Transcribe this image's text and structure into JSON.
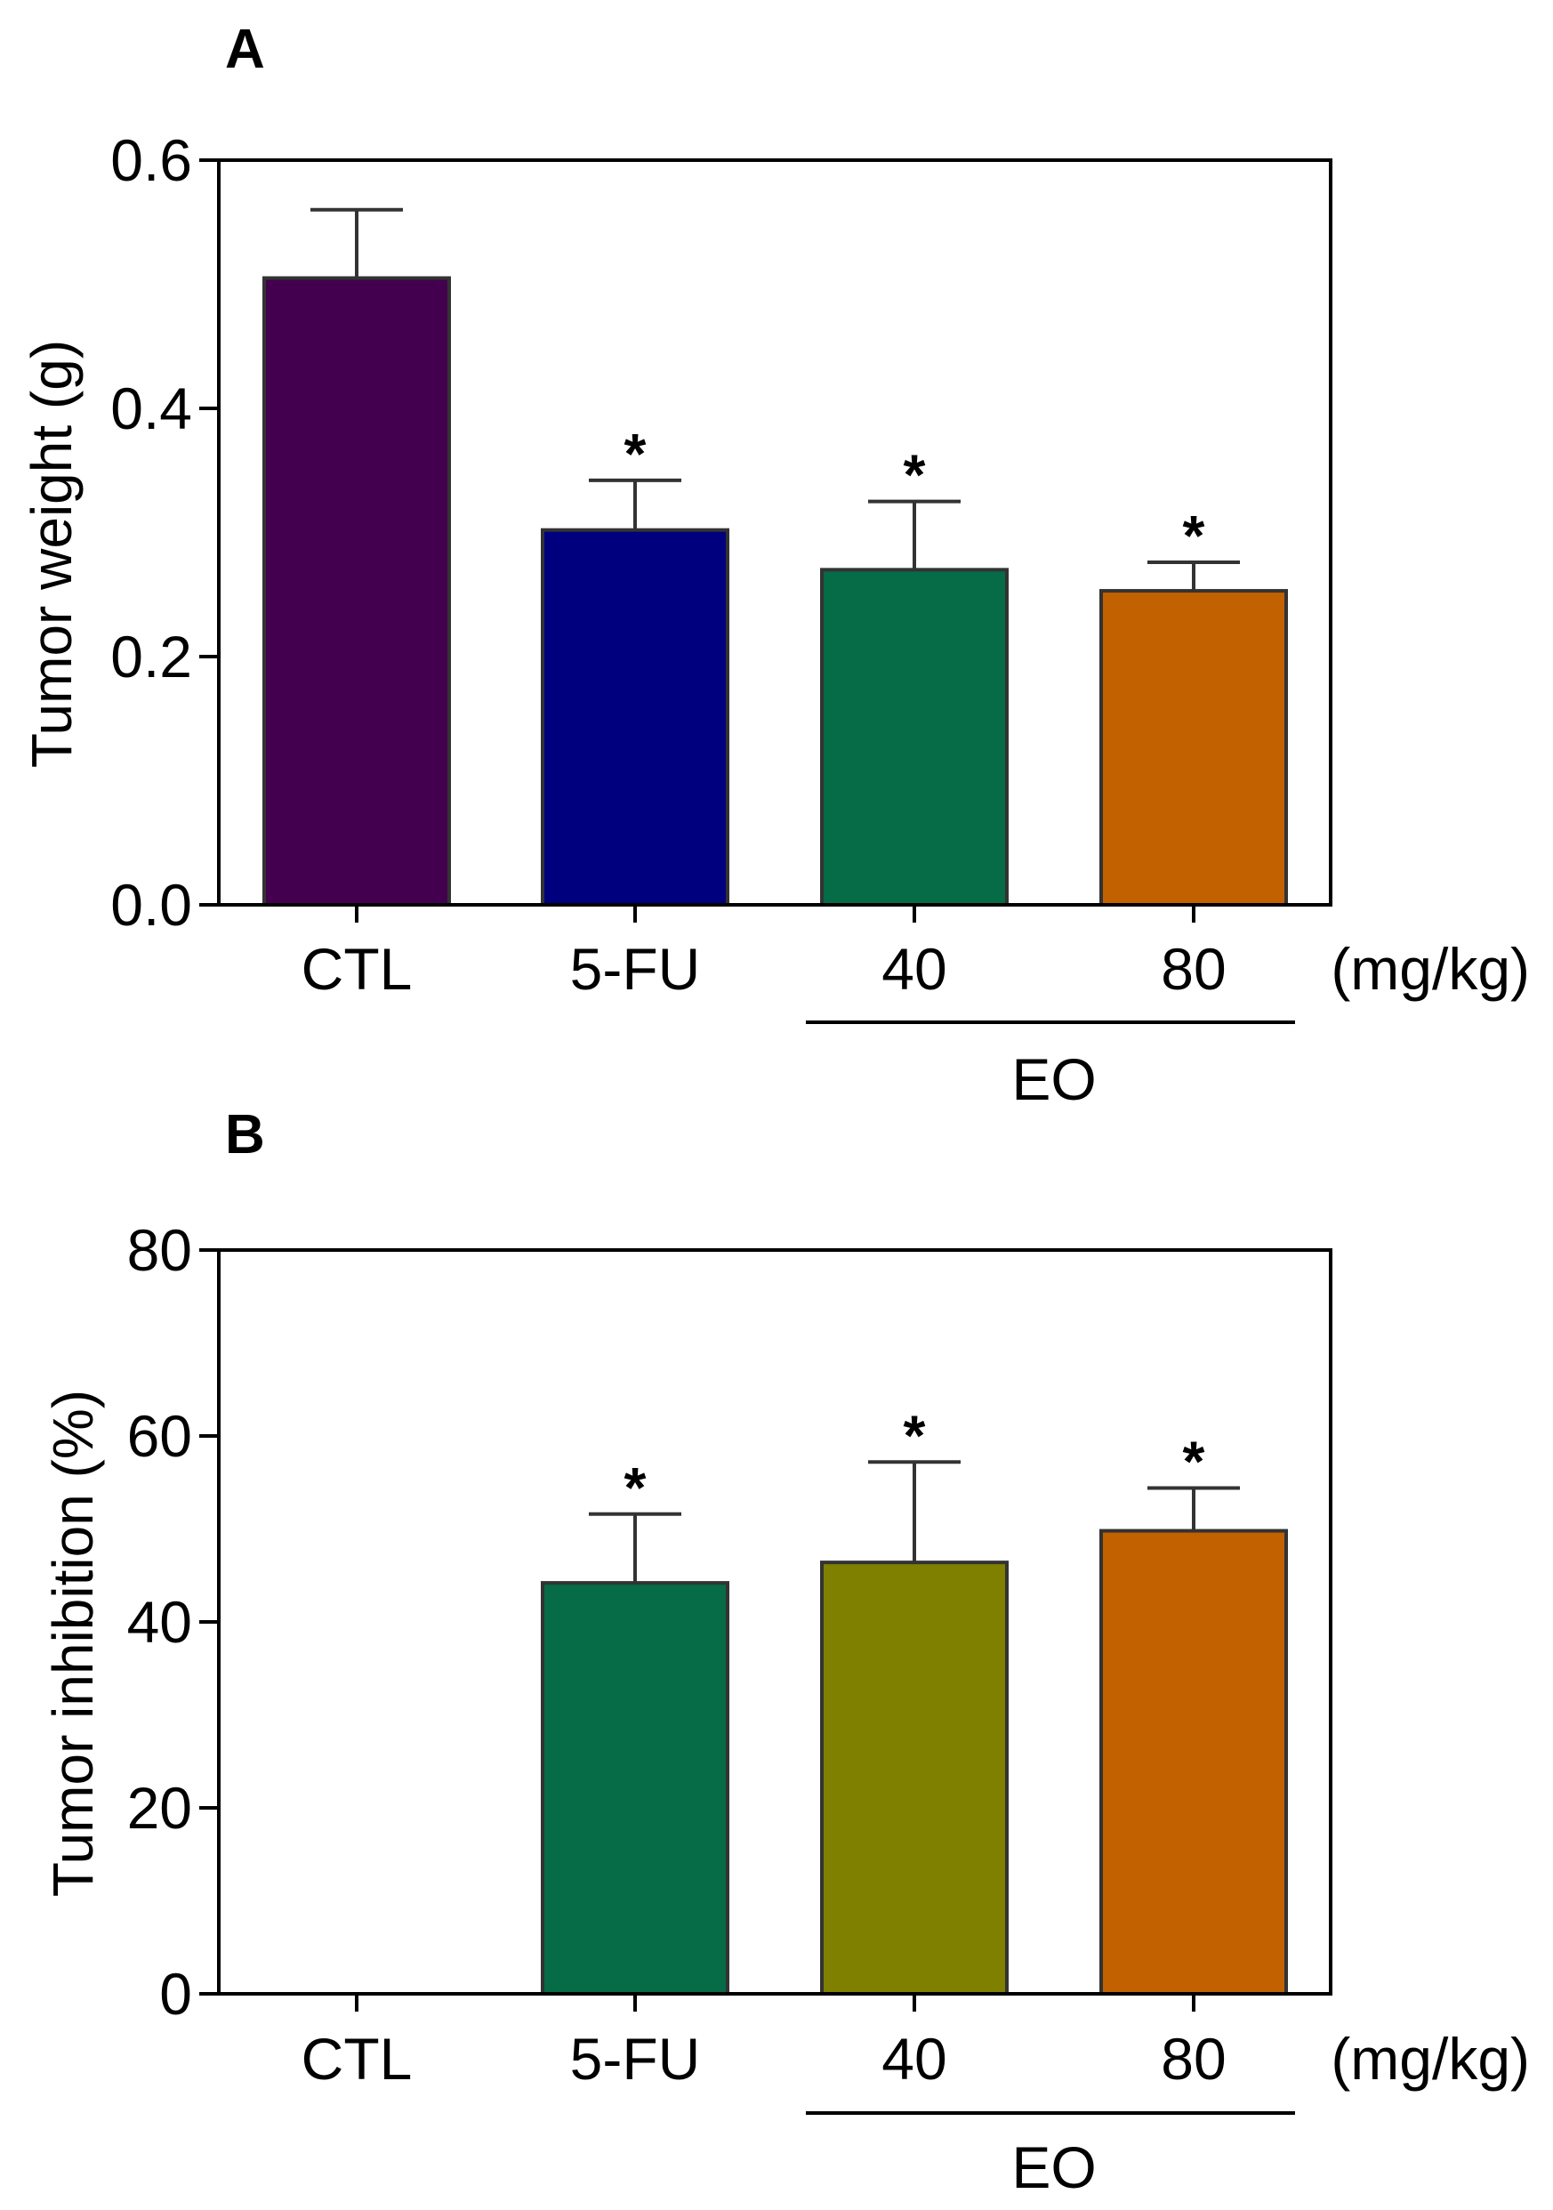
{
  "chart_data": [
    {
      "type": "bar",
      "panel_label": "A",
      "ylabel": "Tumor weight (g)",
      "ylim": [
        0,
        0.6
      ],
      "yticks": [
        "0.0",
        "0.2",
        "0.4",
        "0.6"
      ],
      "ytick_values": [
        0,
        0.2,
        0.4,
        0.6
      ],
      "categories": [
        "CTL",
        "5-FU",
        "40",
        "80"
      ],
      "values": [
        0.505,
        0.302,
        0.27,
        0.253
      ],
      "errors": [
        0.055,
        0.04,
        0.055,
        0.023
      ],
      "significance": [
        "",
        "*",
        "*",
        "*"
      ],
      "colors": [
        "#42004f",
        "#00007f",
        "#066b47",
        "#c26100"
      ],
      "unit_label": "(mg/kg)",
      "group_label": "EO",
      "grid": false
    },
    {
      "type": "bar",
      "panel_label": "B",
      "ylabel": "Tumor inhibition (%)",
      "ylim": [
        0,
        80
      ],
      "yticks": [
        "0",
        "20",
        "40",
        "60",
        "80"
      ],
      "ytick_values": [
        0,
        20,
        40,
        60,
        80
      ],
      "categories": [
        "CTL",
        "5-FU",
        "40",
        "80"
      ],
      "values": [
        0,
        44.2,
        46.4,
        49.8
      ],
      "errors": [
        0,
        7.4,
        10.8,
        4.6
      ],
      "significance": [
        "",
        "*",
        "*",
        "*"
      ],
      "colors": [
        "#42004f",
        "#066b47",
        "#7f7f00",
        "#c26100"
      ],
      "unit_label": "(mg/kg)",
      "group_label": "EO",
      "grid": false
    }
  ]
}
